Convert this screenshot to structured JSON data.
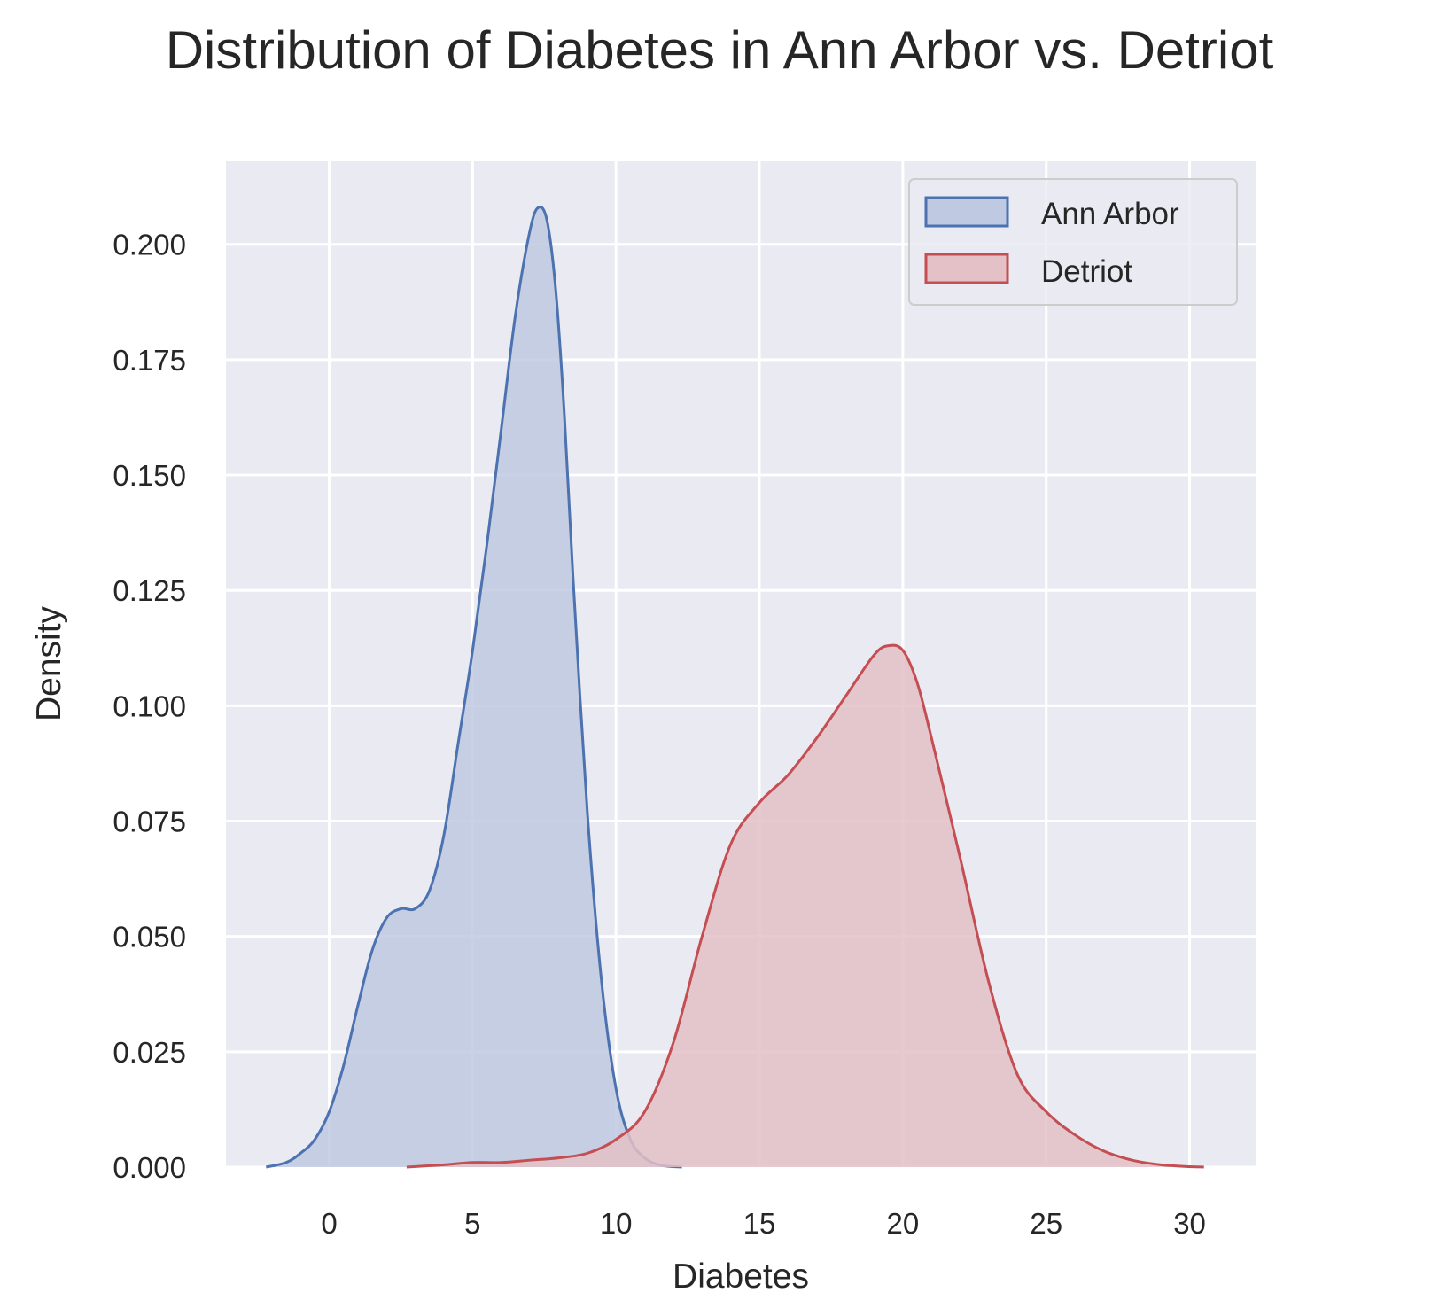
{
  "chart_data": {
    "type": "area",
    "title": "Distribution of Diabetes in Ann Arbor vs. Detriot",
    "xlabel": "Diabetes",
    "ylabel": "Density",
    "xlim": [
      -3.6,
      32.3
    ],
    "ylim": [
      0,
      0.218
    ],
    "xticks": [
      0,
      5,
      10,
      15,
      20,
      25,
      30
    ],
    "yticks": [
      0.0,
      0.025,
      0.05,
      0.075,
      0.1,
      0.125,
      0.15,
      0.175,
      0.2
    ],
    "ytick_labels": [
      "0.000",
      "0.025",
      "0.050",
      "0.075",
      "0.100",
      "0.125",
      "0.150",
      "0.175",
      "0.200"
    ],
    "grid": true,
    "legend_position": "top-right",
    "series": [
      {
        "name": "Ann Arbor",
        "color": "#4c72b0",
        "fill": "#c0c9e2",
        "x": [
          -2.2,
          -1.5,
          -1.0,
          -0.5,
          0.0,
          0.5,
          1.0,
          1.5,
          2.0,
          2.5,
          3.0,
          3.5,
          4.0,
          4.5,
          5.0,
          5.5,
          6.0,
          6.5,
          7.0,
          7.3,
          7.6,
          7.9,
          8.2,
          8.5,
          9.0,
          9.5,
          10.0,
          10.5,
          11.0,
          11.5,
          12.0,
          12.3
        ],
        "y": [
          0.0,
          0.001,
          0.003,
          0.006,
          0.012,
          0.022,
          0.035,
          0.047,
          0.054,
          0.056,
          0.056,
          0.06,
          0.072,
          0.092,
          0.112,
          0.135,
          0.16,
          0.185,
          0.203,
          0.208,
          0.205,
          0.19,
          0.163,
          0.128,
          0.077,
          0.04,
          0.017,
          0.006,
          0.002,
          0.0005,
          0.0001,
          0.0
        ]
      },
      {
        "name": "Detriot",
        "color": "#c44e52",
        "fill": "#e3c1c7",
        "x": [
          2.7,
          4.0,
          5.0,
          6.0,
          7.0,
          8.0,
          9.0,
          10.0,
          11.0,
          12.0,
          13.0,
          14.0,
          15.0,
          16.0,
          17.0,
          18.0,
          19.0,
          19.5,
          20.0,
          20.5,
          21.0,
          22.0,
          23.0,
          24.0,
          25.0,
          26.0,
          27.0,
          28.0,
          29.0,
          30.0,
          30.5
        ],
        "y": [
          0.0,
          0.0005,
          0.001,
          0.001,
          0.0015,
          0.002,
          0.003,
          0.006,
          0.012,
          0.027,
          0.05,
          0.07,
          0.079,
          0.085,
          0.093,
          0.102,
          0.111,
          0.113,
          0.112,
          0.105,
          0.093,
          0.067,
          0.04,
          0.02,
          0.012,
          0.007,
          0.0035,
          0.0015,
          0.0005,
          0.0001,
          0.0
        ]
      }
    ]
  }
}
